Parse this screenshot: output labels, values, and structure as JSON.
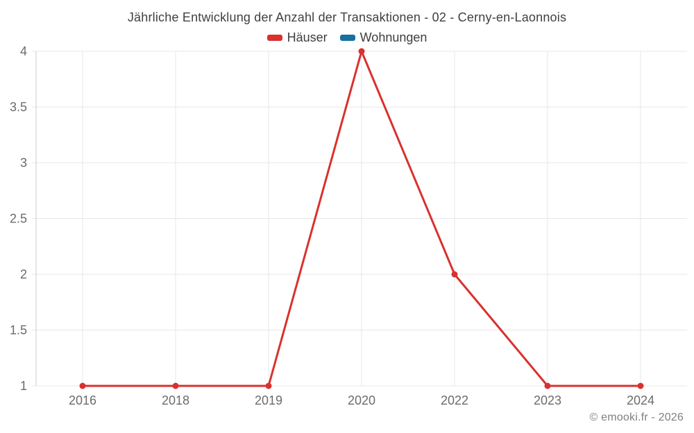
{
  "chart_data": {
    "type": "line",
    "title": "Jährliche Entwicklung der Anzahl der Transaktionen - 02 - Cerny-en-Laonnois",
    "categories": [
      "2016",
      "2018",
      "2019",
      "2020",
      "2022",
      "2023",
      "2024"
    ],
    "series": [
      {
        "name": "Häuser",
        "color": "#d8312f",
        "values": [
          1,
          1,
          1,
          4,
          2,
          1,
          1
        ]
      },
      {
        "name": "Wohnungen",
        "color": "#16719f",
        "values": []
      }
    ],
    "xlabel": "",
    "ylabel": "",
    "ylim": [
      1,
      4
    ],
    "yticks": [
      1,
      1.5,
      2,
      2.5,
      3,
      3.5,
      4
    ],
    "grid": true,
    "legend_position": "top",
    "watermark": "© emooki.fr - 2026",
    "colors": {
      "grid": "#e7e7e7",
      "axis_line": "#cccccc",
      "axis_label": "#6b6b6b",
      "title_text": "#404040",
      "legend_text": "#3d3d3d",
      "watermark_text": "#808080",
      "background": "#ffffff"
    }
  }
}
